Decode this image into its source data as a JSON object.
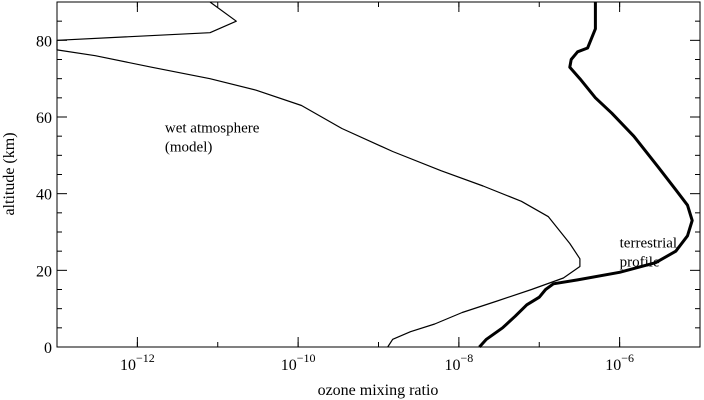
{
  "chart_data": {
    "type": "line",
    "xlabel": "ozone mixing ratio",
    "ylabel": "altitude (km)",
    "xscale": "log",
    "xlim": [
      1e-13,
      1e-05
    ],
    "ylim": [
      0,
      90
    ],
    "x_ticks": [
      {
        "value": 1e-12,
        "base": "10",
        "exp": "−12"
      },
      {
        "value": 1e-10,
        "base": "10",
        "exp": "−10"
      },
      {
        "value": 1e-08,
        "base": "10",
        "exp": "−8"
      },
      {
        "value": 1e-06,
        "base": "10",
        "exp": "−6"
      }
    ],
    "y_ticks": [
      "0",
      "20",
      "40",
      "60",
      "80"
    ],
    "y_tick_values": [
      0,
      20,
      40,
      60,
      80
    ],
    "grid": false,
    "series": [
      {
        "key": "wet",
        "label_lines": [
          "wet atmosphere",
          "(model)"
        ],
        "label_anchor": {
          "x": 2.2e-12,
          "y": 56
        },
        "color": "#000000",
        "weight": "thin",
        "points": [
          [
            1.3e-09,
            0
          ],
          [
            1.5e-09,
            2
          ],
          [
            2.5e-09,
            4
          ],
          [
            5e-09,
            6
          ],
          [
            1.1e-08,
            9
          ],
          [
            3e-08,
            12
          ],
          [
            8e-08,
            15
          ],
          [
            2e-07,
            18
          ],
          [
            3.2e-07,
            21
          ],
          [
            3.2e-07,
            23
          ],
          [
            2.4e-07,
            27
          ],
          [
            1.3e-07,
            34
          ],
          [
            6e-08,
            38
          ],
          [
            2e-08,
            42
          ],
          [
            6e-09,
            46
          ],
          [
            1.5e-09,
            51
          ],
          [
            3.5e-10,
            57
          ],
          [
            1.1e-10,
            63
          ],
          [
            3e-11,
            67
          ],
          [
            8e-12,
            70
          ],
          [
            1.5e-12,
            73
          ],
          [
            3e-13,
            76
          ],
          [
            1e-13,
            77.5
          ],
          [
            1e-13,
            80
          ],
          [
            8e-12,
            82
          ],
          [
            1.7e-11,
            85
          ],
          [
            8e-12,
            90
          ]
        ]
      },
      {
        "key": "terrestrial",
        "label_lines": [
          "terrestrial",
          "profile"
        ],
        "label_anchor": {
          "x": 1e-06,
          "y": 26
        },
        "color": "#000000",
        "weight": "thick",
        "points": [
          [
            1.8e-08,
            0
          ],
          [
            2.2e-08,
            2
          ],
          [
            3.5e-08,
            5
          ],
          [
            5e-08,
            8
          ],
          [
            7e-08,
            11
          ],
          [
            1e-07,
            13
          ],
          [
            1.2e-07,
            15
          ],
          [
            1.5e-07,
            16.5
          ],
          [
            3e-07,
            17.5
          ],
          [
            1e-06,
            19.5
          ],
          [
            2.8e-06,
            22
          ],
          [
            5e-06,
            25
          ],
          [
            7e-06,
            29
          ],
          [
            8e-06,
            33
          ],
          [
            7e-06,
            37
          ],
          [
            5e-06,
            41
          ],
          [
            3e-06,
            47
          ],
          [
            1.5e-06,
            55
          ],
          [
            8e-07,
            61
          ],
          [
            5e-07,
            65
          ],
          [
            3.2e-07,
            70
          ],
          [
            2.4e-07,
            73
          ],
          [
            2.5e-07,
            75
          ],
          [
            3e-07,
            77
          ],
          [
            4e-07,
            78
          ],
          [
            5e-07,
            83
          ],
          [
            5e-07,
            90
          ]
        ]
      }
    ]
  }
}
